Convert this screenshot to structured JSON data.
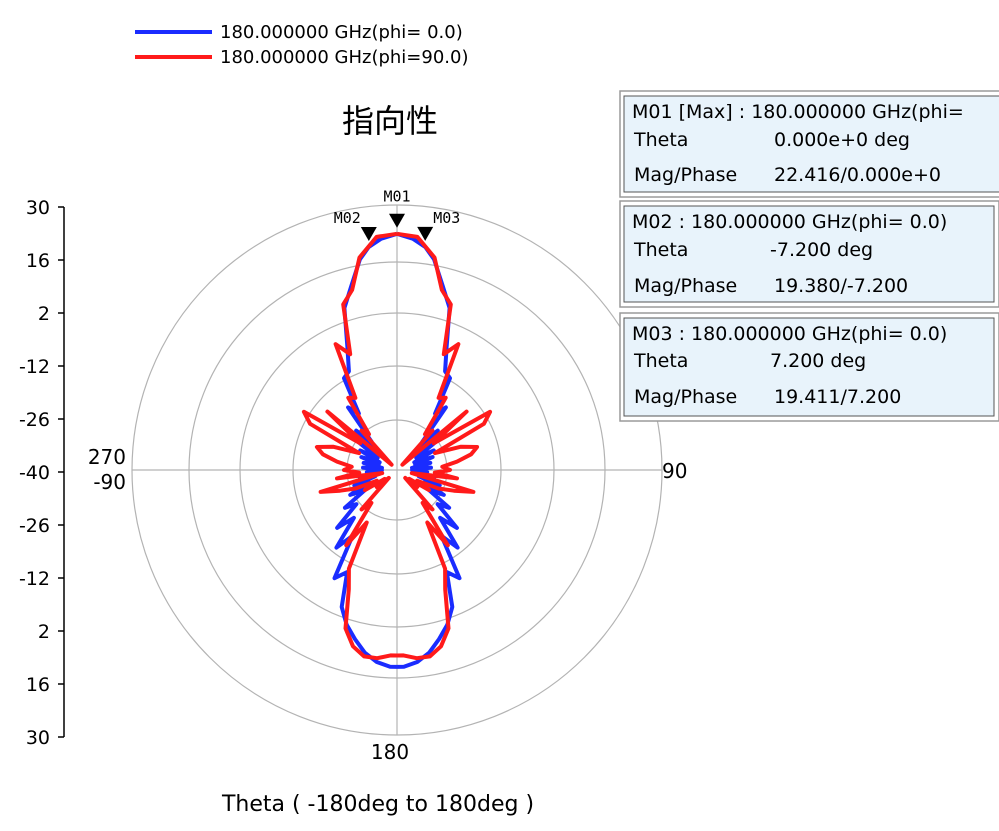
{
  "chart_data": {
    "type": "line",
    "projection": "polar",
    "title": "指向性",
    "xlabel": "Theta ( -180deg to 180deg )",
    "radial_range": [
      -40,
      30
    ],
    "radial_ticks": [
      "30",
      "16",
      "2",
      "-12",
      "-26",
      "-40",
      "-26",
      "-12",
      "2",
      "16",
      "30"
    ],
    "angle_labels": {
      "top": "",
      "right": "90",
      "bottom": "180",
      "left_upper": "270",
      "left_lower": "-90"
    },
    "grid": true,
    "legend_placement": "top-left",
    "series": [
      {
        "name": "180.000000 GHz(phi= 0.0)",
        "color": "#1a2cff",
        "theta": [
          0,
          4,
          7.2,
          10,
          14,
          18,
          22,
          26,
          30,
          34,
          38,
          42,
          46,
          50,
          54,
          58,
          62,
          66,
          70,
          74,
          78,
          82,
          86,
          90,
          94,
          98,
          102,
          106,
          110,
          114,
          118,
          122,
          126,
          130,
          134,
          138,
          142,
          146,
          150,
          154,
          158,
          162,
          166,
          170,
          174,
          178,
          180,
          182,
          186,
          190,
          194,
          198,
          202,
          206,
          210,
          214,
          218,
          222,
          226,
          230,
          234,
          238,
          242,
          246,
          250,
          254,
          258,
          262,
          266,
          270,
          274,
          278,
          282,
          286,
          290,
          294,
          298,
          302,
          306,
          310,
          314,
          318,
          322,
          326,
          330,
          334,
          338,
          342,
          346,
          350,
          352.8,
          356,
          360
        ],
        "r": [
          22.4,
          21.2,
          19.4,
          16.5,
          10,
          5,
          -5,
          -11,
          -12,
          -22,
          -19,
          -30,
          -25,
          -33,
          -27,
          -34,
          -29,
          -35,
          -30,
          -35,
          -31,
          -36,
          -31,
          -36,
          -32,
          -35,
          -30,
          -34,
          -28,
          -32,
          -26,
          -30,
          -23,
          -26,
          -18,
          -23,
          -14,
          -19,
          -7,
          -10,
          -1,
          3,
          6,
          9,
          11,
          12,
          12,
          12,
          11,
          9,
          6,
          3,
          -1,
          -10,
          -7,
          -19,
          -14,
          -23,
          -18,
          -26,
          -23,
          -30,
          -26,
          -32,
          -28,
          -34,
          -30,
          -35,
          -32,
          -36,
          -31,
          -36,
          -31,
          -35,
          -30,
          -35,
          -29,
          -34,
          -27,
          -33,
          -25,
          -30,
          -19,
          -22,
          -12,
          -11,
          -5,
          5,
          10,
          16.5,
          19.4,
          21.2,
          22.4
        ]
      },
      {
        "name": "180.000000 GHz(phi=90.0)",
        "color": "#ff1a1a",
        "theta": [
          0,
          5,
          10,
          14,
          18,
          22,
          26,
          30,
          34,
          38,
          42,
          46,
          50,
          54,
          58,
          62,
          66,
          70,
          74,
          78,
          82,
          86,
          90,
          94,
          98,
          102,
          106,
          110,
          114,
          118,
          122,
          126,
          130,
          134,
          138,
          142,
          146,
          150,
          154,
          158,
          162,
          166,
          170,
          174,
          178,
          180,
          182,
          186,
          190,
          194,
          198,
          202,
          206,
          210,
          214,
          218,
          222,
          226,
          230,
          234,
          238,
          242,
          246,
          250,
          254,
          258,
          262,
          266,
          270,
          274,
          278,
          282,
          286,
          290,
          294,
          298,
          302,
          306,
          310,
          314,
          318,
          322,
          326,
          330,
          334,
          338,
          342,
          346,
          350,
          355,
          360
        ],
        "r": [
          22.4,
          21.8,
          17,
          9,
          6,
          -7,
          -3,
          -18,
          -17,
          -28,
          -26,
          -38,
          -16,
          -28,
          -11,
          -14,
          -29,
          -22,
          -18,
          -20,
          -24,
          -28,
          -26,
          -30,
          -24,
          -36,
          -19,
          -24,
          -28,
          -34,
          -30,
          -36,
          -33,
          -37,
          -26,
          -29,
          -16,
          -24,
          -11,
          -6,
          4,
          8,
          10,
          10,
          9,
          9,
          9,
          10,
          10,
          8,
          4,
          -6,
          -11,
          -24,
          -16,
          -29,
          -26,
          -37,
          -33,
          -36,
          -30,
          -34,
          -28,
          -24,
          -19,
          -36,
          -24,
          -30,
          -26,
          -28,
          -24,
          -20,
          -18,
          -22,
          -29,
          -14,
          -11,
          -28,
          -16,
          -38,
          -26,
          -28,
          -17,
          -18,
          -3,
          -7,
          6,
          9,
          17,
          21.8,
          22.4
        ]
      }
    ],
    "markers": [
      {
        "id": "M01",
        "theta": 0.0,
        "value": 22.416
      },
      {
        "id": "M02",
        "theta": -7.2,
        "value": 19.38
      },
      {
        "id": "M03",
        "theta": 7.2,
        "value": 19.411
      }
    ]
  },
  "legend": [
    {
      "label": "180.000000 GHz(phi= 0.0)",
      "color": "#1a2cff"
    },
    {
      "label": "180.000000 GHz(phi=90.0)",
      "color": "#ff1a1a"
    }
  ],
  "marker_boxes": [
    {
      "header": "M01 [Max] : 180.000000 GHz(phi=",
      "theta_label": "Theta",
      "theta_value": "0.000e+0  deg",
      "mag_label": "Mag/Phase",
      "mag_value": "22.416/0.000e+0"
    },
    {
      "header": "M02 : 180.000000 GHz(phi= 0.0)",
      "theta_label": "Theta",
      "theta_value": "-7.200  deg",
      "mag_label": "Mag/Phase",
      "mag_value": "19.380/-7.200"
    },
    {
      "header": "M03 : 180.000000 GHz(phi= 0.0)",
      "theta_label": "Theta",
      "theta_value": "7.200  deg",
      "mag_label": "Mag/Phase",
      "mag_value": "19.411/7.200"
    }
  ]
}
